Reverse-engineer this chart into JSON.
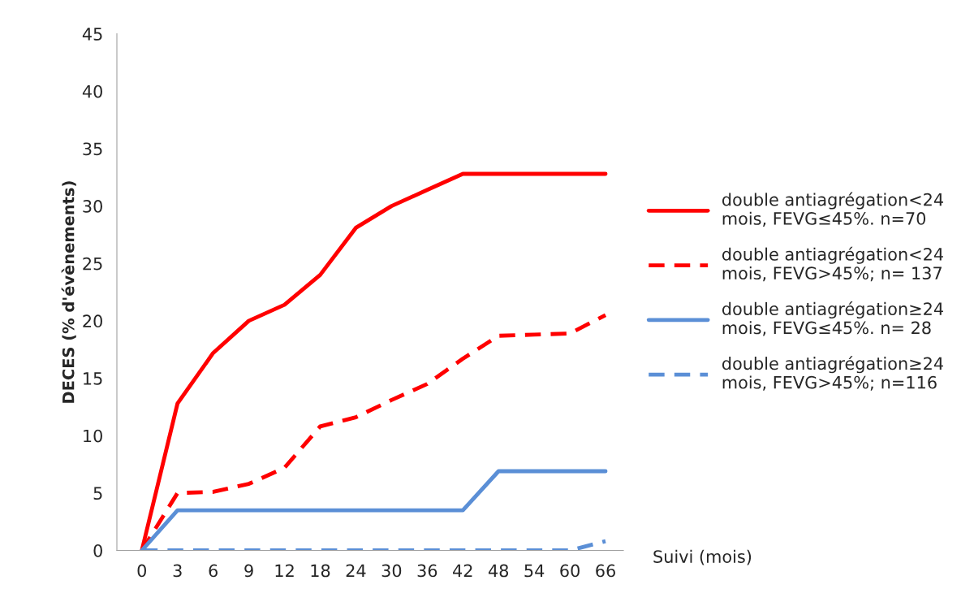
{
  "chart_data": {
    "type": "line",
    "xlabel": "Suivi (mois)",
    "ylabel": "DECES (% d'évènements)",
    "categories": [
      "0",
      "3",
      "6",
      "9",
      "12",
      "18",
      "24",
      "30",
      "36",
      "42",
      "48",
      "54",
      "60",
      "66"
    ],
    "ylim": [
      0,
      45
    ],
    "yticks": [
      0,
      5,
      10,
      15,
      20,
      25,
      30,
      35,
      40,
      45
    ],
    "grid": false,
    "legend": "right",
    "marker": "none",
    "series": [
      {
        "name": "double antiagrégation<24 mois, FEVG≤45%. n=70",
        "color": "#ff0000",
        "line_style": "solid",
        "values": [
          0,
          12.8,
          17.2,
          20,
          21.4,
          24,
          28.1,
          30,
          31.4,
          32.8,
          32.8,
          32.8,
          32.8,
          32.8
        ]
      },
      {
        "name": "double antiagrégation<24 mois, FEVG>45%; n= 137",
        "color": "#ff0000",
        "line_style": "dashed",
        "values": [
          0,
          5.0,
          5.1,
          5.8,
          7.2,
          10.8,
          11.6,
          13.1,
          14.5,
          16.7,
          18.7,
          18.8,
          18.9,
          20.5
        ]
      },
      {
        "name": "double antiagrégation≥24 mois, FEVG≤45%. n= 28",
        "color": "#5b8fd6",
        "line_style": "solid",
        "values": [
          0,
          3.5,
          3.5,
          3.5,
          3.5,
          3.5,
          3.5,
          3.5,
          3.5,
          3.5,
          6.9,
          6.9,
          6.9,
          6.9
        ]
      },
      {
        "name": "double antiagrégation≥24 mois, FEVG>45%; n=116",
        "color": "#5b8fd6",
        "line_style": "dashed",
        "values": [
          0,
          0,
          0,
          0,
          0,
          0,
          0,
          0,
          0,
          0,
          0,
          0,
          0,
          0.8
        ]
      }
    ]
  }
}
